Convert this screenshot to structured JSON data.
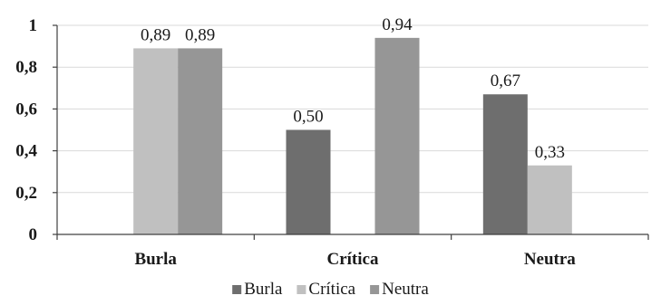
{
  "chart_data": {
    "type": "bar",
    "categories": [
      "Burla",
      "Crítica",
      "Neutra"
    ],
    "series": [
      {
        "name": "Burla",
        "color": "#6e6e6e",
        "values": [
          0,
          0.5,
          0.67
        ],
        "labels": [
          "",
          "0,50",
          "0,67"
        ]
      },
      {
        "name": "Crítica",
        "color": "#c0c0c0",
        "values": [
          0.89,
          0,
          0.33
        ],
        "labels": [
          "0,89",
          "",
          "0,33"
        ]
      },
      {
        "name": "Neutra",
        "color": "#969696",
        "values": [
          0.89,
          0.94,
          0
        ],
        "labels": [
          "0,89",
          "0,94",
          ""
        ]
      }
    ],
    "ylim": [
      0,
      1
    ],
    "yticks": [
      0,
      0.2,
      0.4,
      0.6,
      0.8,
      1
    ],
    "ytick_labels": [
      "0",
      "0,2",
      "0,4",
      "0,6",
      "0,8",
      "1"
    ],
    "grid": true,
    "legend_position": "bottom",
    "title": "",
    "xlabel": "",
    "ylabel": ""
  }
}
